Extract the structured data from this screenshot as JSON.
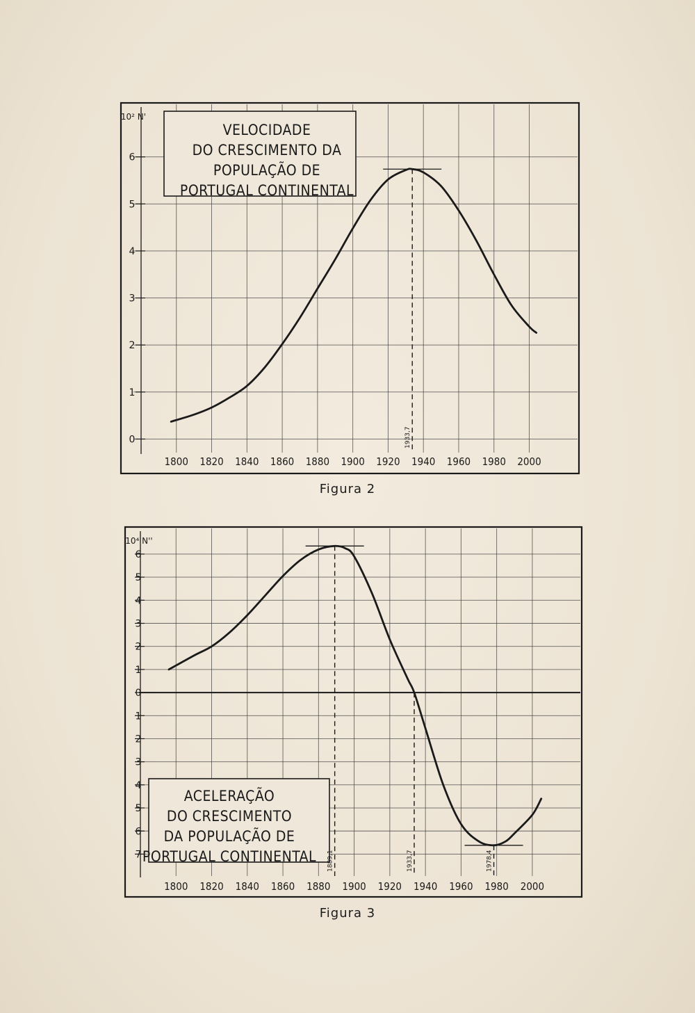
{
  "chart_data": [
    {
      "type": "line",
      "title": "VELOCIDADE DO CRESCIMENTO DA POPULAÇÃO DE PORTUGAL CONTINENTAL",
      "title_lines": [
        "VELOCIDADE",
        "DO CRESCIMENTO DA",
        "POPULAÇÃO DE",
        "PORTUGAL CONTINENTAL"
      ],
      "ylabel": "10² N'",
      "caption": "Figura 2",
      "xlim": [
        1780,
        2025
      ],
      "ylim": [
        -0.2,
        7
      ],
      "x_ticks": [
        1800,
        1820,
        1840,
        1860,
        1880,
        1900,
        1920,
        1940,
        1960,
        1980,
        2000
      ],
      "x_tick_labels": [
        "1800",
        "1820",
        "1840",
        "1860",
        "1880",
        "1900",
        "1920",
        "1940",
        "1960",
        "1980",
        "2000"
      ],
      "y_ticks": [
        0,
        1,
        2,
        3,
        4,
        5,
        6
      ],
      "y_tick_labels": [
        "0",
        "1",
        "2",
        "3",
        "4",
        "5",
        "6"
      ],
      "grid": true,
      "annotations": [
        {
          "x": 1933.7,
          "label": "1933,7"
        }
      ],
      "series": [
        {
          "x": [
            1797,
            1810,
            1820,
            1830,
            1840,
            1850,
            1860,
            1870,
            1880,
            1890,
            1900,
            1910,
            1920,
            1930,
            1933.7,
            1940,
            1950,
            1960,
            1970,
            1980,
            1990,
            2000,
            2004
          ],
          "y": [
            0.37,
            0.52,
            0.67,
            0.88,
            1.13,
            1.52,
            2.02,
            2.58,
            3.2,
            3.82,
            4.48,
            5.08,
            5.52,
            5.72,
            5.74,
            5.67,
            5.38,
            4.86,
            4.22,
            3.5,
            2.84,
            2.39,
            2.26
          ]
        }
      ]
    },
    {
      "type": "line",
      "title": "ACELERAÇÃO DO CRESCIMENTO DA POPULAÇÃO DE PORTUGAL CONTINENTAL",
      "title_lines": [
        "ACELERAÇÃO",
        "DO CRESCIMENTO",
        "DA POPULAÇÃO DE",
        "PORTUGAL CONTINENTAL"
      ],
      "ylabel": "10⁴ N''",
      "caption": "Figura 3",
      "xlim": [
        1780,
        2025
      ],
      "ylim": [
        -7.8,
        6.6
      ],
      "x_ticks": [
        1800,
        1820,
        1840,
        1860,
        1880,
        1900,
        1920,
        1940,
        1960,
        1980,
        2000
      ],
      "x_tick_labels": [
        "1800",
        "1820",
        "1840",
        "1860",
        "1880",
        "1900",
        "1920",
        "1940",
        "1960",
        "1980",
        "2000"
      ],
      "y_ticks": [
        6,
        5,
        4,
        3,
        2,
        1,
        0,
        -1,
        -2,
        -3,
        -4,
        -5,
        -6,
        -7
      ],
      "y_tick_labels": [
        "6",
        "5",
        "4",
        "3",
        "2",
        "1",
        "0",
        "1",
        "2",
        "3",
        "4",
        "5",
        "6",
        "7"
      ],
      "grid": true,
      "annotations": [
        {
          "x": 1889.1,
          "label": "1889,1"
        },
        {
          "x": 1933.7,
          "label": "1933,7"
        },
        {
          "x": 1978.4,
          "label": "1978,4"
        }
      ],
      "series": [
        {
          "x": [
            1796,
            1810,
            1820,
            1830,
            1840,
            1850,
            1860,
            1870,
            1880,
            1889.1,
            1895,
            1900,
            1910,
            1920,
            1930,
            1933.7,
            1940,
            1950,
            1960,
            1970,
            1978.4,
            1985,
            1990,
            2000,
            2005
          ],
          "y": [
            1.0,
            1.6,
            2.0,
            2.6,
            3.35,
            4.2,
            5.05,
            5.75,
            6.2,
            6.35,
            6.25,
            5.9,
            4.3,
            2.3,
            0.6,
            0.0,
            -1.55,
            -4.0,
            -5.7,
            -6.45,
            -6.62,
            -6.45,
            -6.1,
            -5.3,
            -4.6
          ]
        }
      ]
    }
  ]
}
